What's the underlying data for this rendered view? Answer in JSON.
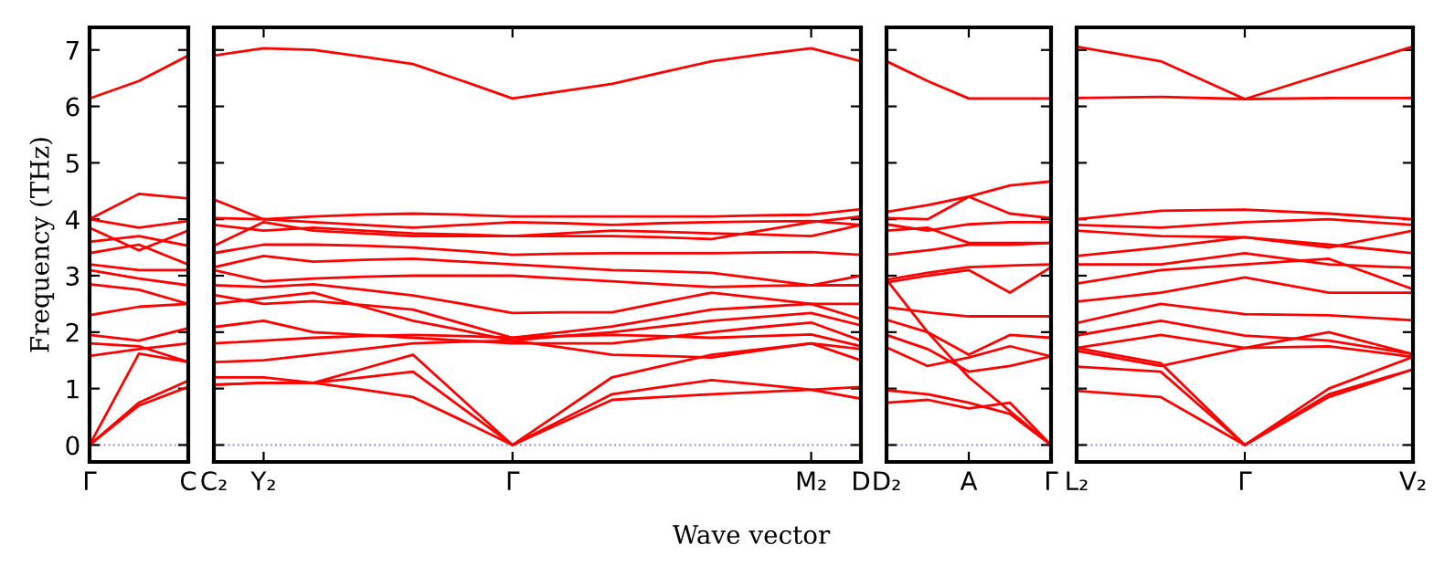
{
  "chart_data": [
    {
      "type": "line",
      "ylabel": "Frequency (THz)",
      "color": "#ff0000",
      "line_style": "solid",
      "marker": "none",
      "grid": false,
      "legend": false,
      "ylim": [
        -0.3,
        7.4
      ],
      "yticks": [
        0,
        1,
        2,
        3,
        4,
        5,
        6,
        7
      ],
      "categories": [
        "Γ",
        null,
        "C"
      ],
      "ref_lines": [
        {
          "axis": "y",
          "value": 0,
          "color": "#8888ee",
          "line_style": "dotted"
        }
      ],
      "series": [
        {
          "values": [
            6.14,
            6.45,
            6.9
          ]
        },
        {
          "values": [
            4.0,
            4.45,
            4.37
          ]
        },
        {
          "values": [
            4.0,
            3.85,
            3.97
          ]
        },
        {
          "values": [
            3.85,
            3.45,
            3.8
          ]
        },
        {
          "values": [
            3.6,
            3.7,
            3.53
          ]
        },
        {
          "values": [
            3.4,
            3.55,
            3.2
          ]
        },
        {
          "values": [
            3.2,
            3.1,
            3.1
          ]
        },
        {
          "values": [
            3.1,
            2.95,
            2.83
          ]
        },
        {
          "values": [
            2.85,
            2.75,
            2.5
          ]
        },
        {
          "values": [
            2.3,
            2.45,
            2.5
          ]
        },
        {
          "values": [
            1.95,
            1.85,
            2.07
          ]
        },
        {
          "values": [
            1.8,
            1.75,
            1.47
          ]
        },
        {
          "values": [
            1.58,
            1.7,
            1.8
          ]
        },
        {
          "values": [
            0,
            1.62,
            1.47
          ]
        },
        {
          "values": [
            0,
            0.75,
            1.14
          ]
        },
        {
          "values": [
            0,
            0.7,
            1.03
          ]
        }
      ]
    },
    {
      "type": "line",
      "color": "#ff0000",
      "line_style": "solid",
      "marker": "none",
      "grid": false,
      "legend": false,
      "tick_labels": "x",
      "xlabel": "Wave vector",
      "ylim": [
        -0.3,
        7.4
      ],
      "yticks": [
        {
          "value": 0,
          "label": null
        },
        {
          "value": 1,
          "label": null
        },
        {
          "value": 2,
          "label": null
        },
        {
          "value": 3,
          "label": null
        },
        {
          "value": 4,
          "label": null
        },
        {
          "value": 5,
          "label": null
        },
        {
          "value": 6,
          "label": null
        },
        {
          "value": 7,
          "label": null
        }
      ],
      "categories": [
        "C₂",
        "Y₂",
        null,
        null,
        null,
        null,
        "Γ",
        null,
        null,
        null,
        null,
        null,
        "M₂",
        "D"
      ],
      "ref_lines": [
        {
          "axis": "y",
          "value": 0,
          "color": "#8888ee",
          "line_style": "dotted"
        }
      ],
      "series": [
        {
          "values": [
            6.9,
            7.03,
            7.0,
            6.88,
            6.75,
            6.45,
            6.14,
            6.27,
            6.4,
            6.6,
            6.8,
            6.92,
            7.03,
            6.8
          ]
        },
        {
          "values": [
            4.35,
            4.0,
            4.05,
            4.08,
            4.1,
            4.08,
            4.05,
            4.05,
            4.05,
            4.05,
            4.05,
            4.07,
            4.08,
            4.18
          ]
        },
        {
          "values": [
            4.02,
            4.0,
            3.95,
            3.9,
            3.85,
            3.9,
            3.95,
            3.93,
            3.9,
            3.93,
            3.95,
            3.96,
            3.97,
            3.9
          ]
        },
        {
          "values": [
            3.9,
            3.8,
            3.85,
            3.8,
            3.75,
            3.73,
            3.7,
            3.75,
            3.8,
            3.78,
            3.75,
            3.73,
            3.7,
            3.9
          ]
        },
        {
          "values": [
            3.53,
            3.95,
            3.8,
            3.75,
            3.7,
            3.7,
            3.7,
            3.7,
            3.7,
            3.68,
            3.65,
            3.8,
            3.95,
            4.05
          ]
        },
        {
          "values": [
            3.4,
            3.55,
            3.55,
            3.53,
            3.5,
            3.44,
            3.37,
            3.39,
            3.4,
            3.4,
            3.4,
            3.41,
            3.42,
            3.37
          ]
        },
        {
          "values": [
            3.15,
            3.35,
            3.25,
            3.28,
            3.3,
            3.25,
            3.2,
            3.15,
            3.1,
            3.08,
            3.05,
            2.94,
            2.83,
            3.0
          ]
        },
        {
          "values": [
            3.1,
            2.9,
            2.95,
            2.98,
            3.0,
            3.0,
            3.0,
            2.95,
            2.9,
            2.85,
            2.8,
            2.82,
            2.83,
            2.83
          ]
        },
        {
          "values": [
            2.83,
            2.8,
            2.85,
            2.75,
            2.65,
            2.5,
            2.34,
            2.35,
            2.35,
            2.53,
            2.7,
            2.6,
            2.5,
            2.5
          ]
        },
        {
          "values": [
            2.66,
            2.5,
            2.55,
            2.48,
            2.4,
            2.15,
            1.9,
            2.0,
            2.1,
            2.25,
            2.4,
            2.45,
            2.5,
            2.23
          ]
        },
        {
          "values": [
            2.5,
            2.6,
            2.7,
            2.45,
            2.2,
            2.03,
            1.85,
            1.93,
            2.0,
            2.1,
            2.2,
            2.27,
            2.34,
            2.12
          ]
        },
        {
          "values": [
            2.09,
            2.2,
            2.0,
            1.95,
            1.9,
            1.85,
            1.8,
            1.8,
            1.8,
            1.9,
            2.0,
            2.09,
            2.17,
            1.85
          ]
        },
        {
          "values": [
            1.8,
            1.85,
            1.9,
            1.93,
            1.95,
            1.93,
            1.9,
            1.93,
            1.95,
            1.93,
            1.9,
            1.93,
            1.96,
            1.75
          ]
        },
        {
          "values": [
            1.47,
            1.5,
            1.6,
            1.7,
            1.8,
            1.83,
            1.85,
            1.73,
            1.6,
            1.58,
            1.55,
            1.68,
            1.8,
            1.5
          ]
        },
        {
          "values": [
            1.2,
            1.2,
            1.1,
            0.98,
            0.85,
            0.43,
            0,
            0.45,
            0.9,
            1.03,
            1.15,
            1.07,
            0.98,
            0.82
          ]
        },
        {
          "values": [
            1.07,
            1.1,
            1.1,
            1.2,
            1.3,
            0.65,
            0,
            0.4,
            0.8,
            0.85,
            0.9,
            0.94,
            0.98,
            1.03
          ]
        },
        {
          "values": [
            1.07,
            1.1,
            1.1,
            1.35,
            1.6,
            0.8,
            0,
            0.6,
            1.2,
            1.4,
            1.6,
            1.7,
            1.8,
            1.7
          ]
        }
      ]
    },
    {
      "type": "line",
      "color": "#ff0000",
      "line_style": "solid",
      "marker": "none",
      "grid": false,
      "legend": false,
      "tick_labels": "x",
      "ylim": [
        -0.3,
        7.4
      ],
      "yticks": [
        {
          "value": 0,
          "label": null
        },
        {
          "value": 1,
          "label": null
        },
        {
          "value": 2,
          "label": null
        },
        {
          "value": 3,
          "label": null
        },
        {
          "value": 4,
          "label": null
        },
        {
          "value": 5,
          "label": null
        },
        {
          "value": 6,
          "label": null
        },
        {
          "value": 7,
          "label": null
        }
      ],
      "categories": [
        "D₂",
        null,
        "A",
        null,
        "Γ"
      ],
      "ref_lines": [
        {
          "axis": "y",
          "value": 0,
          "color": "#8888ee",
          "line_style": "dotted"
        }
      ],
      "series": [
        {
          "values": [
            6.8,
            6.45,
            6.14,
            6.14,
            6.14
          ]
        },
        {
          "values": [
            4.13,
            4.25,
            4.4,
            4.6,
            4.67
          ]
        },
        {
          "values": [
            4.02,
            4.0,
            4.4,
            4.1,
            4.02
          ]
        },
        {
          "values": [
            3.91,
            3.8,
            3.91,
            3.95,
            3.95
          ]
        },
        {
          "values": [
            3.8,
            3.85,
            3.58,
            3.58,
            3.58
          ]
        },
        {
          "values": [
            3.37,
            3.45,
            3.55,
            3.55,
            3.58
          ]
        },
        {
          "values": [
            2.93,
            3.05,
            3.15,
            3.18,
            3.2
          ]
        },
        {
          "values": [
            2.88,
            3.0,
            3.1,
            2.7,
            3.15
          ]
        },
        {
          "values": [
            2.44,
            2.35,
            2.28,
            2.28,
            2.28
          ]
        },
        {
          "values": [
            2.22,
            2.0,
            1.6,
            1.95,
            1.9
          ]
        },
        {
          "values": [
            1.95,
            1.7,
            1.3,
            1.4,
            1.57
          ]
        },
        {
          "values": [
            1.73,
            1.4,
            1.55,
            1.75,
            1.57
          ]
        },
        {
          "values": [
            2.93,
            2.0,
            1.2,
            0.6,
            0
          ]
        },
        {
          "values": [
            0.97,
            0.9,
            0.75,
            0.55,
            0
          ]
        },
        {
          "values": [
            0.75,
            0.8,
            0.65,
            0.75,
            0
          ]
        }
      ]
    },
    {
      "type": "line",
      "color": "#ff0000",
      "line_style": "solid",
      "marker": "none",
      "grid": false,
      "legend": false,
      "tick_labels": "x",
      "ylim": [
        -0.3,
        7.4
      ],
      "yticks": [
        {
          "value": 0,
          "label": null
        },
        {
          "value": 1,
          "label": null
        },
        {
          "value": 2,
          "label": null
        },
        {
          "value": 3,
          "label": null
        },
        {
          "value": 4,
          "label": null
        },
        {
          "value": 5,
          "label": null
        },
        {
          "value": 6,
          "label": null
        },
        {
          "value": 7,
          "label": null
        }
      ],
      "categories": [
        "L₂",
        null,
        "Γ",
        null,
        "V₂"
      ],
      "ref_lines": [
        {
          "axis": "y",
          "value": 0,
          "color": "#8888ee",
          "line_style": "dotted"
        }
      ],
      "series": [
        {
          "values": [
            7.06,
            6.8,
            6.13,
            6.6,
            7.06
          ]
        },
        {
          "values": [
            6.15,
            6.17,
            6.13,
            6.15,
            6.15
          ]
        },
        {
          "values": [
            4.0,
            4.15,
            4.17,
            4.1,
            4.0
          ]
        },
        {
          "values": [
            3.9,
            3.85,
            3.95,
            4.0,
            3.9
          ]
        },
        {
          "values": [
            3.8,
            3.7,
            3.68,
            3.5,
            3.8
          ]
        },
        {
          "values": [
            3.35,
            3.5,
            3.68,
            3.55,
            3.4
          ]
        },
        {
          "values": [
            3.2,
            3.2,
            3.4,
            3.2,
            3.14
          ]
        },
        {
          "values": [
            2.86,
            3.1,
            3.2,
            3.3,
            2.76
          ]
        },
        {
          "values": [
            2.54,
            2.7,
            2.97,
            2.7,
            2.7
          ]
        },
        {
          "values": [
            2.16,
            2.5,
            2.32,
            2.3,
            2.21
          ]
        },
        {
          "values": [
            1.94,
            2.2,
            1.94,
            1.85,
            1.61
          ]
        },
        {
          "values": [
            1.72,
            1.95,
            1.72,
            1.75,
            1.56
          ]
        },
        {
          "values": [
            1.67,
            1.4,
            1.72,
            2.0,
            1.61
          ]
        },
        {
          "values": [
            1.39,
            1.3,
            0,
            1.0,
            1.56
          ]
        },
        {
          "values": [
            0.96,
            0.85,
            0,
            0.85,
            1.34
          ]
        },
        {
          "values": [
            1.72,
            1.45,
            0,
            0.9,
            1.34
          ]
        }
      ]
    }
  ]
}
